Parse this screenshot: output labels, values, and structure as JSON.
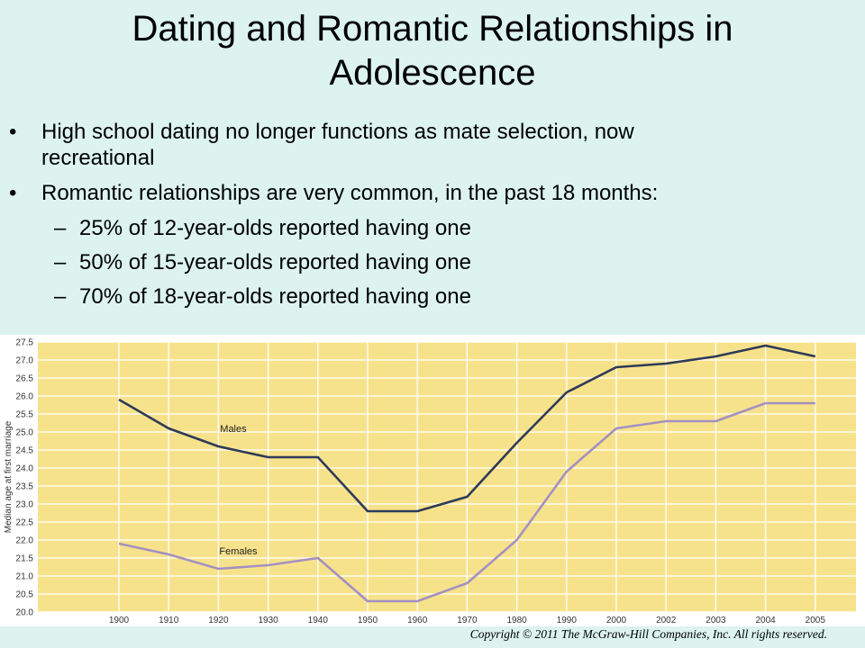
{
  "slide": {
    "title_line1": "Dating and Romantic Relationships in",
    "title_line2": "Adolescence",
    "bullets": [
      "High school dating no longer functions as mate selection, now",
      "recreational",
      "Romantic relationships are very common, in the past 18 months:"
    ],
    "bullet_glyph": "•",
    "sub_glyph": "–",
    "sub_bullets": [
      "25% of 12-year-olds reported having one",
      "50% of 15-year-olds reported having one",
      "70% of 18-year-olds reported having one"
    ],
    "copyright": "Copyright © 2011 The McGraw-Hill Companies, Inc. All rights reserved."
  },
  "chart_data": {
    "type": "line",
    "title": "",
    "xlabel": "",
    "ylabel": "Median age at first marriage",
    "categories": [
      "1900",
      "1910",
      "1920",
      "1930",
      "1940",
      "1950",
      "1960",
      "1970",
      "1980",
      "1990",
      "2000",
      "2002",
      "2003",
      "2004",
      "2005"
    ],
    "series": [
      {
        "name": "Males",
        "color": "#2e3a57",
        "values": [
          25.9,
          25.1,
          24.6,
          24.3,
          24.3,
          22.8,
          22.8,
          23.2,
          24.7,
          26.1,
          26.8,
          26.9,
          27.1,
          27.4,
          27.1
        ]
      },
      {
        "name": "Females",
        "color": "#a391c0",
        "values": [
          21.9,
          21.6,
          21.2,
          21.3,
          21.5,
          20.3,
          20.3,
          20.8,
          22.0,
          23.9,
          25.1,
          25.3,
          25.3,
          25.8,
          25.8
        ]
      }
    ],
    "y_ticks": [
      "20.0",
      "20.5",
      "21.0",
      "21.5",
      "22.0",
      "22.5",
      "23.0",
      "23.5",
      "24.0",
      "24.5",
      "25.0",
      "25.5",
      "26.0",
      "26.5",
      "27.0",
      "27.5"
    ],
    "ylim": [
      20.0,
      27.5
    ],
    "grid": true,
    "background": "#f7e28c",
    "grid_color": "#ffffff"
  }
}
